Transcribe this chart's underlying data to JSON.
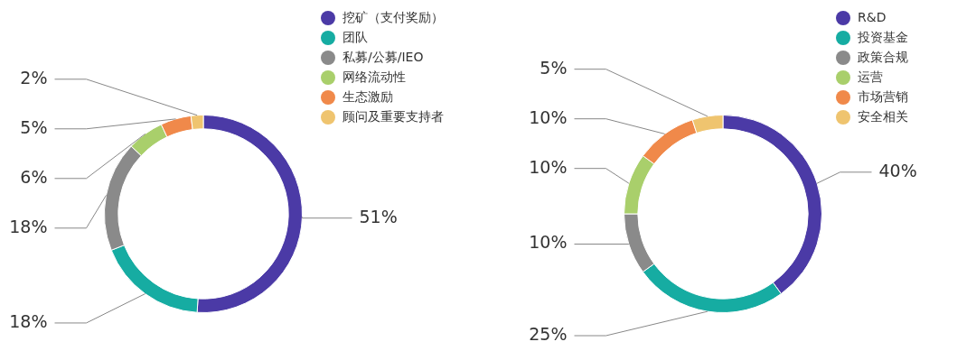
{
  "chart_data": [
    {
      "type": "donut",
      "categories": [
        "挖矿（支付奖励）",
        "团队",
        "私募/公募/IEO",
        "网络流动性",
        "生态激励",
        "顾问及重要支持者"
      ],
      "values": [
        51,
        18,
        18,
        6,
        5,
        2
      ],
      "colors": [
        "#4b3aa6",
        "#16aca2",
        "#8a8a8a",
        "#a9cf6b",
        "#f0894a",
        "#efc46f"
      ],
      "value_labels": [
        "51%",
        "18%",
        "18%",
        "6%",
        "5%",
        "2%"
      ],
      "legend": "top right"
    },
    {
      "type": "donut",
      "categories": [
        "R&D",
        "投资基金",
        "政策合规",
        "运营",
        "市场营销",
        "安全相关"
      ],
      "values": [
        40,
        25,
        10,
        10,
        10,
        5
      ],
      "colors": [
        "#4b3aa6",
        "#16aca2",
        "#8a8a8a",
        "#a9cf6b",
        "#f0894a",
        "#efc46f"
      ],
      "value_labels": [
        "40%",
        "25%",
        "10%",
        "10%",
        "10%",
        "5%"
      ],
      "legend": "top right"
    }
  ]
}
